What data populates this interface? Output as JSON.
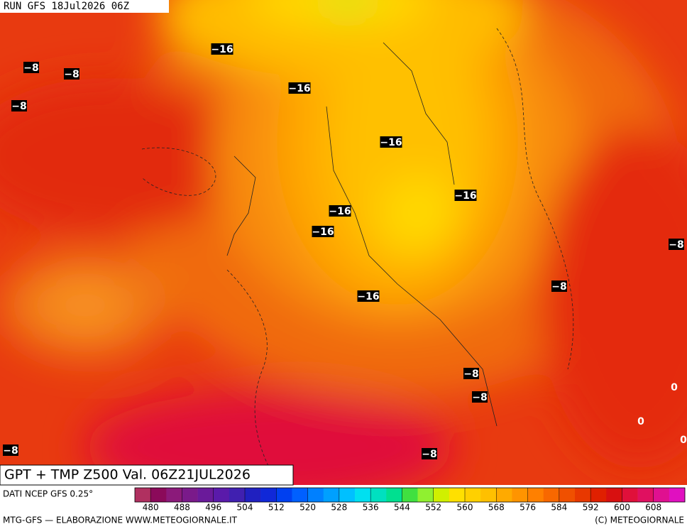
{
  "header": {
    "run": "RUN GFS 18Jul2026 06Z",
    "title": "GPT + TMP Z500 Val. 06Z21JUL2026"
  },
  "map_labels": [
    "−16",
    "−16",
    "−16",
    "−16",
    "−16",
    "−16",
    "−16",
    "−8",
    "−8",
    "−8",
    "−8",
    "−8",
    "−8",
    "−8",
    "−8",
    "−8",
    "0",
    "0",
    "0"
  ],
  "legend": {
    "source": "DATI NCEP GFS 0.25°",
    "colors": [
      "#b03060",
      "#8b0a5a",
      "#8b1a7a",
      "#7a1a8a",
      "#6a1a9a",
      "#5a1aaa",
      "#4020b0",
      "#2020c0",
      "#1028d8",
      "#0040f0",
      "#0060ff",
      "#0080ff",
      "#00a0ff",
      "#00c0ff",
      "#00e0f0",
      "#00e0c0",
      "#00e090",
      "#40e040",
      "#90f030",
      "#d0f000",
      "#ffe000",
      "#ffd000",
      "#ffc000",
      "#ffaa00",
      "#ff9400",
      "#ff8000",
      "#f86800",
      "#f05000",
      "#e83800",
      "#e02000",
      "#d81010",
      "#e0103a",
      "#e01060",
      "#e01090",
      "#e010c0"
    ],
    "ticks": [
      480,
      488,
      496,
      504,
      512,
      520,
      528,
      536,
      544,
      552,
      560,
      568,
      576,
      584,
      592,
      600,
      608
    ]
  },
  "footer": {
    "left": "MTG-GFS — ELABORAZIONE WWW.METEOGIORNALE.IT",
    "right": "(C) METEOGIORNALE"
  }
}
